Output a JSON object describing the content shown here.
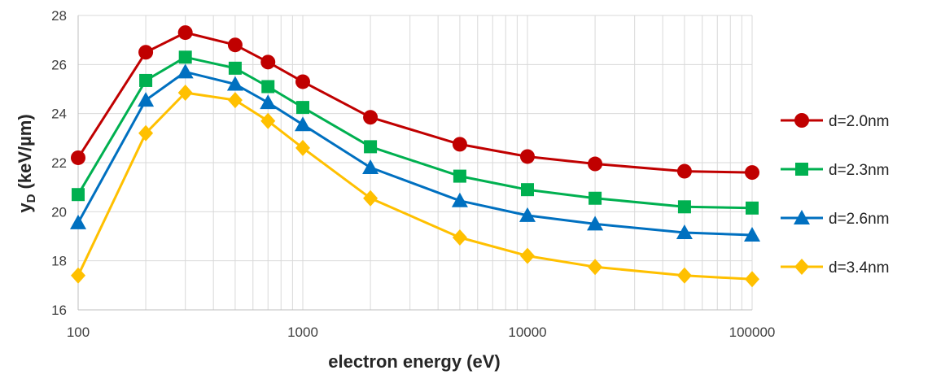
{
  "chart_data": {
    "type": "line",
    "xscale": "log",
    "xlabel": "electron energy (eV)",
    "ylabel": {
      "main": "y",
      "sub": "D",
      "rest": " (keV/µm)"
    },
    "xlim": [
      100,
      100000
    ],
    "ylim": [
      16,
      28
    ],
    "xticks": [
      100,
      1000,
      10000,
      100000
    ],
    "xtick_labels": [
      "100",
      "1000",
      "10000",
      "100000"
    ],
    "yticks": [
      16,
      18,
      20,
      22,
      24,
      26,
      28
    ],
    "ytick_labels": [
      "16",
      "18",
      "20",
      "22",
      "24",
      "26",
      "28"
    ],
    "grid": "major and minor vertical, major horizontal",
    "legend_position": "right",
    "x": [
      100,
      200,
      300,
      500,
      700,
      1000,
      2000,
      5000,
      10000,
      20000,
      50000,
      100000
    ],
    "series": [
      {
        "name": "d=2.0nm",
        "color": "#c00000",
        "marker": "circle",
        "values": [
          22.2,
          26.5,
          27.3,
          26.8,
          26.1,
          25.3,
          23.85,
          22.75,
          22.25,
          21.95,
          21.65,
          21.6
        ]
      },
      {
        "name": "d=2.3nm",
        "color": "#00b050",
        "marker": "square",
        "values": [
          20.7,
          25.35,
          26.3,
          25.85,
          25.1,
          24.25,
          22.65,
          21.45,
          20.9,
          20.55,
          20.2,
          20.15
        ]
      },
      {
        "name": "d=2.6nm",
        "color": "#0070c0",
        "marker": "triangle",
        "values": [
          19.55,
          24.55,
          25.7,
          25.2,
          24.45,
          23.55,
          21.8,
          20.45,
          19.85,
          19.5,
          19.15,
          19.05
        ]
      },
      {
        "name": "d=3.4nm",
        "color": "#ffc000",
        "marker": "diamond",
        "values": [
          17.4,
          23.2,
          24.85,
          24.55,
          23.7,
          22.6,
          20.55,
          18.95,
          18.2,
          17.75,
          17.4,
          17.25
        ]
      }
    ]
  }
}
